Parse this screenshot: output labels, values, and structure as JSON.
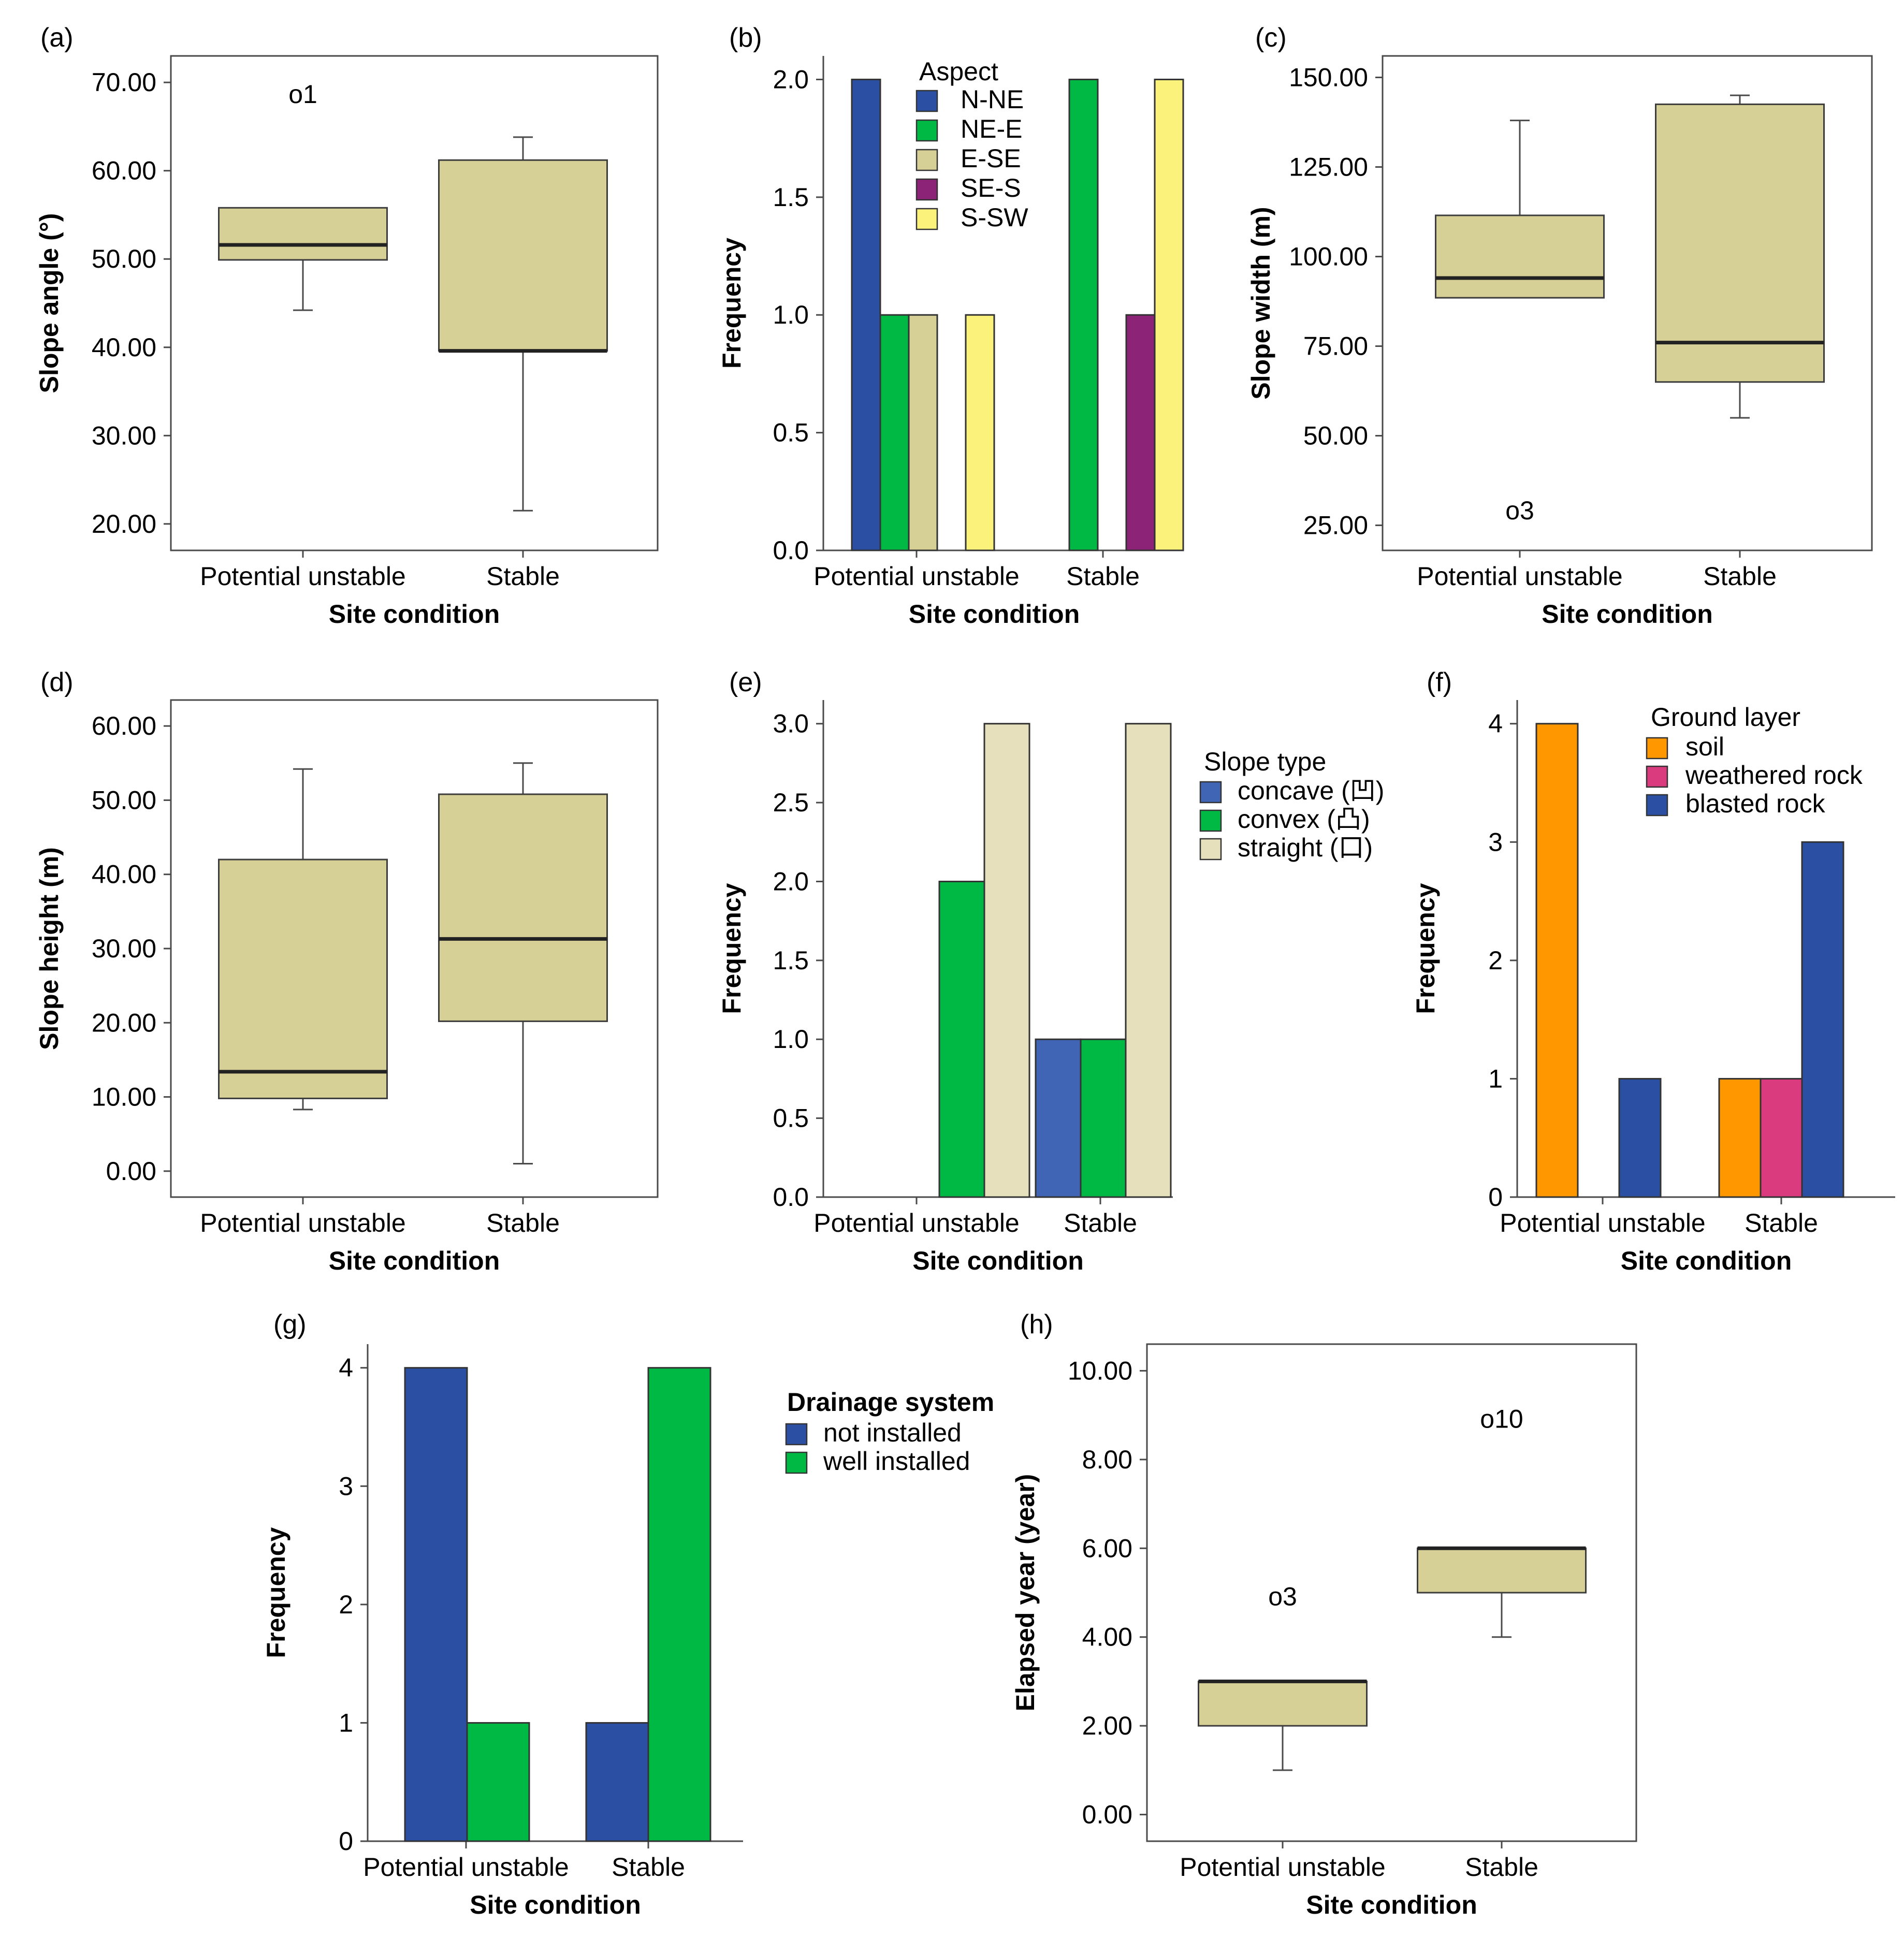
{
  "chart_data": [
    {
      "panel": "(a)",
      "type": "box",
      "xlabel": "Site condition",
      "ylabel": "Slope angle (°)",
      "categories": [
        "Potential unstable",
        "Stable"
      ],
      "ylim": [
        17,
        73
      ],
      "ticks": [
        20,
        30,
        40,
        50,
        60,
        70
      ],
      "tick_labels": [
        "20.00",
        "30.00",
        "40.00",
        "50.00",
        "60.00",
        "70.00"
      ],
      "boxes": [
        {
          "min": 44.2,
          "q1": 49.9,
          "median": 51.6,
          "q3": 55.8,
          "max": 55.8
        },
        {
          "min": 21.5,
          "q1": 39.6,
          "median": 39.6,
          "q3": 61.2,
          "max": 63.8
        }
      ],
      "outliers": [
        {
          "category": 0,
          "value": 68.6,
          "label": "o1"
        }
      ]
    },
    {
      "panel": "(b)",
      "type": "bar",
      "xlabel": "Site condition",
      "ylabel": "Frequency",
      "categories": [
        "Potential unstable",
        "Stable"
      ],
      "ylim": [
        0,
        2.1
      ],
      "ticks": [
        0,
        0.5,
        1,
        1.5,
        2
      ],
      "tick_labels": [
        "0.0",
        "0.5",
        "1.0",
        "1.5",
        "2.0"
      ],
      "legend_title": "Aspect",
      "legend_placement": "top-left",
      "series": [
        {
          "name": "N-NE",
          "color": "#2A4FA3",
          "values": [
            2,
            0
          ]
        },
        {
          "name": "NE-E",
          "color": "#00B944",
          "values": [
            1,
            2
          ]
        },
        {
          "name": "E-SE",
          "color": "#D6CF96",
          "values": [
            1,
            0
          ]
        },
        {
          "name": "SE-S",
          "color": "#8C2377",
          "values": [
            0,
            1
          ]
        },
        {
          "name": "S-SW",
          "color": "#FBF27C",
          "values": [
            1,
            2
          ]
        }
      ]
    },
    {
      "panel": "(c)",
      "type": "box",
      "xlabel": "Site condition",
      "ylabel": "Slope width (m)",
      "categories": [
        "Potential unstable",
        "Stable"
      ],
      "ylim": [
        18,
        156
      ],
      "ticks": [
        25,
        50,
        75,
        100,
        125,
        150
      ],
      "tick_labels": [
        "25.00",
        "50.00",
        "75.00",
        "100.00",
        "125.00",
        "150.00"
      ],
      "boxes": [
        {
          "min": 88.5,
          "q1": 88.5,
          "median": 94,
          "q3": 111.5,
          "max": 138
        },
        {
          "min": 55,
          "q1": 65,
          "median": 76,
          "q3": 142.5,
          "max": 145
        }
      ],
      "outliers": [
        {
          "category": 0,
          "value": 29,
          "label": "o3"
        }
      ]
    },
    {
      "panel": "(d)",
      "type": "box",
      "xlabel": "Site condition",
      "ylabel": "Slope height (m)",
      "categories": [
        "Potential unstable",
        "Stable"
      ],
      "ylim": [
        -3.5,
        63.5
      ],
      "ticks": [
        0,
        10,
        20,
        30,
        40,
        50,
        60
      ],
      "tick_labels": [
        "0.00",
        "10.00",
        "20.00",
        "30.00",
        "40.00",
        "50.00",
        "60.00"
      ],
      "boxes": [
        {
          "min": 8.3,
          "q1": 9.8,
          "median": 13.4,
          "q3": 42,
          "max": 54.2
        },
        {
          "min": 1,
          "q1": 20.2,
          "median": 31.3,
          "q3": 50.8,
          "max": 55
        }
      ],
      "outliers": []
    },
    {
      "panel": "(e)",
      "type": "bar",
      "xlabel": "Site condition",
      "ylabel": "Frequency",
      "categories": [
        "Potential unstable",
        "Stable"
      ],
      "ylim": [
        0,
        3.15
      ],
      "ticks": [
        0,
        0.5,
        1,
        1.5,
        2,
        2.5,
        3
      ],
      "tick_labels": [
        "0.0",
        "0.5",
        "1.0",
        "1.5",
        "2.0",
        "2.5",
        "3.0"
      ],
      "legend_title": "Slope type",
      "legend_placement": "right",
      "series": [
        {
          "name": "concave (凹)",
          "color": "#4065B4",
          "values": [
            0,
            1
          ]
        },
        {
          "name": "convex (凸)",
          "color": "#00B944",
          "values": [
            2,
            1
          ]
        },
        {
          "name": "straight (口)",
          "color": "#E6E1BC",
          "values": [
            3,
            3
          ]
        }
      ]
    },
    {
      "panel": "(f)",
      "type": "bar",
      "xlabel": "Site condition",
      "ylabel": "Frequency",
      "categories": [
        "Potential unstable",
        "Stable"
      ],
      "ylim": [
        0,
        4.2
      ],
      "ticks": [
        0,
        1,
        2,
        3,
        4
      ],
      "tick_labels": [
        "0",
        "1",
        "2",
        "3",
        "4"
      ],
      "legend_title": "Ground layer",
      "legend_placement": "top-right",
      "series": [
        {
          "name": "soil",
          "color": "#FF9800",
          "values": [
            4,
            1
          ]
        },
        {
          "name": "weathered rock",
          "color": "#D93B7E",
          "values": [
            0,
            1
          ]
        },
        {
          "name": "blasted rock",
          "color": "#2A4FA3",
          "values": [
            1,
            3
          ]
        }
      ]
    },
    {
      "panel": "(g)",
      "type": "bar",
      "xlabel": "Site condition",
      "ylabel": "Frequency",
      "categories": [
        "Potential unstable",
        "Stable"
      ],
      "ylim": [
        0,
        4.2
      ],
      "ticks": [
        0,
        1,
        2,
        3,
        4
      ],
      "tick_labels": [
        "0",
        "1",
        "2",
        "3",
        "4"
      ],
      "legend_title": "Drainage system",
      "legend_placement": "right",
      "series": [
        {
          "name": "not installed",
          "color": "#2A4FA3",
          "values": [
            4,
            1
          ]
        },
        {
          "name": "well installed",
          "color": "#00B944",
          "values": [
            1,
            4
          ]
        }
      ]
    },
    {
      "panel": "(h)",
      "type": "box",
      "xlabel": "Site condition",
      "ylabel": "Elapsed year (year)",
      "categories": [
        "Potential unstable",
        "Stable"
      ],
      "ylim": [
        -0.6,
        10.6
      ],
      "ticks": [
        0,
        2,
        4,
        6,
        8,
        10
      ],
      "tick_labels": [
        "0.00",
        "2.00",
        "4.00",
        "6.00",
        "8.00",
        "10.00"
      ],
      "boxes": [
        {
          "min": 1,
          "q1": 2,
          "median": 3,
          "q3": 3,
          "max": 3
        },
        {
          "min": 4,
          "q1": 5,
          "median": 6,
          "q3": 6,
          "max": 6
        }
      ],
      "outliers": [
        {
          "category": 0,
          "value": 4.9,
          "label": "o3"
        },
        {
          "category": 1,
          "value": 8.9,
          "label": "o10"
        }
      ]
    }
  ],
  "colors": {
    "box_fill": "#D6CF96",
    "axis": "#4a4a4a",
    "median": "#222222"
  }
}
